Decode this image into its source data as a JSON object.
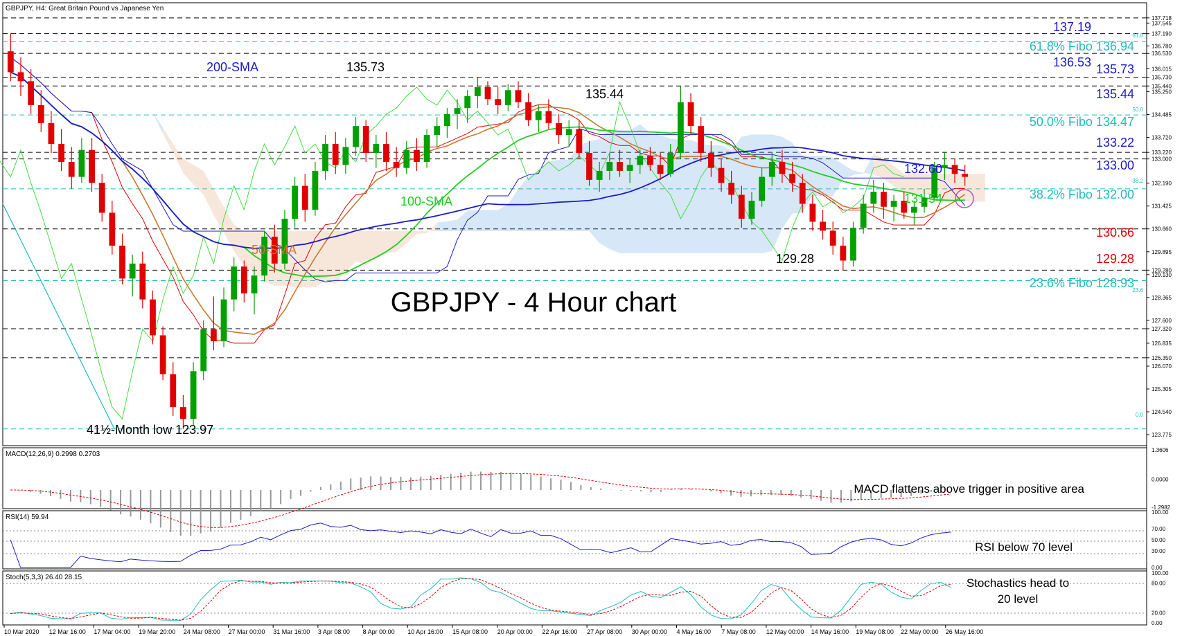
{
  "header": {
    "symbol_info": "GBPJPY, H4: Great Britain Pound vs Japanese Yen"
  },
  "chart_title": "GBPJPY - 4 Hour chart",
  "colors": {
    "candle_up": "#00a000",
    "candle_down": "#e00000",
    "sma200": "#1a1acc",
    "sma100": "#22cc22",
    "sma50": "#c87830",
    "tenkan": "#e00000",
    "kijun": "#1a1acc",
    "chikou": "#44dd44",
    "cloud_bull": "#5aa0e0",
    "cloud_bear": "#e0a070",
    "fibo": "#22bbbb",
    "level": "#000000",
    "annotation_blue": "#1a1acc",
    "annotation_red": "#e00000",
    "annotation_cyan": "#22bbbb",
    "annotation_green": "#22cc22",
    "annotation_orange": "#c87830"
  },
  "chart_data": [
    {
      "type": "candlestick",
      "panel": "price",
      "ylim": [
        123.5,
        137.9
      ],
      "x_tick_labels": [
        "10 Mar 2020",
        "12 Mar 16:00",
        "17 Mar 04:00",
        "19 Mar 20:00",
        "24 Mar 08:00",
        "27 Mar 00:00",
        "31 Mar 16:00",
        "3 Apr 08:00",
        "8 Apr 00:00",
        "10 Apr 16:00",
        "15 Apr 08:00",
        "20 Apr 00:00",
        "22 Apr 16:00",
        "27 Apr 08:00",
        "30 Apr 00:00",
        "4 May 16:00",
        "7 May 08:00",
        "12 May 00:00",
        "14 May 16:00",
        "19 May 08:00",
        "22 May 00:00",
        "26 May 16:00"
      ],
      "y_tick_labels": [
        "137.718",
        "137.545",
        "137.190",
        "136.780",
        "136.530",
        "136.015",
        "135.730",
        "135.440",
        "135.250",
        "134.485",
        "133.720",
        "133.220",
        "133.000",
        "132.190",
        "131.425",
        "130.660",
        "129.895",
        "129.280",
        "129.130",
        "128.365",
        "127.600",
        "127.320",
        "126.835",
        "126.350",
        "126.070",
        "125.305",
        "124.540",
        "123.775"
      ],
      "candles": [
        [
          136.6,
          137.2,
          135.6,
          135.9
        ],
        [
          135.9,
          136.4,
          135.1,
          135.6
        ],
        [
          135.6,
          136.0,
          134.5,
          134.8
        ],
        [
          134.8,
          135.3,
          133.9,
          134.2
        ],
        [
          134.2,
          134.6,
          133.2,
          133.5
        ],
        [
          133.5,
          134.0,
          132.6,
          132.9
        ],
        [
          132.9,
          133.4,
          132.0,
          132.4
        ],
        [
          132.4,
          133.7,
          132.2,
          133.3
        ],
        [
          133.3,
          133.7,
          131.9,
          132.2
        ],
        [
          132.2,
          132.5,
          130.9,
          131.2
        ],
        [
          131.2,
          131.6,
          129.8,
          130.1
        ],
        [
          130.1,
          130.5,
          128.8,
          129.0
        ],
        [
          129.0,
          129.8,
          128.4,
          129.5
        ],
        [
          129.5,
          129.9,
          128.0,
          128.3
        ],
        [
          128.3,
          128.6,
          126.8,
          127.1
        ],
        [
          127.1,
          127.4,
          125.6,
          125.8
        ],
        [
          125.8,
          126.2,
          124.4,
          124.7
        ],
        [
          124.7,
          125.1,
          123.97,
          124.3
        ],
        [
          124.3,
          126.2,
          124.1,
          125.9
        ],
        [
          125.9,
          127.6,
          125.6,
          127.3
        ],
        [
          127.3,
          128.4,
          126.6,
          126.9
        ],
        [
          126.9,
          128.7,
          126.7,
          128.3
        ],
        [
          128.3,
          129.7,
          127.9,
          129.4
        ],
        [
          129.4,
          129.6,
          128.2,
          128.5
        ],
        [
          128.5,
          129.4,
          127.8,
          129.1
        ],
        [
          129.1,
          130.6,
          128.9,
          130.4
        ],
        [
          130.4,
          130.8,
          129.2,
          129.5
        ],
        [
          129.5,
          131.3,
          129.3,
          131.0
        ],
        [
          131.0,
          132.4,
          130.7,
          132.1
        ],
        [
          132.1,
          132.5,
          130.9,
          131.3
        ],
        [
          131.3,
          132.9,
          131.1,
          132.6
        ],
        [
          132.6,
          133.8,
          132.3,
          133.5
        ],
        [
          133.5,
          133.9,
          132.5,
          132.8
        ],
        [
          132.8,
          133.7,
          132.5,
          133.4
        ],
        [
          133.4,
          134.4,
          133.1,
          134.1
        ],
        [
          134.1,
          134.3,
          132.9,
          133.2
        ],
        [
          133.2,
          133.8,
          132.7,
          133.5
        ],
        [
          133.5,
          133.9,
          132.6,
          132.9
        ],
        [
          132.9,
          133.4,
          132.4,
          132.7
        ],
        [
          132.7,
          133.6,
          132.5,
          133.3
        ],
        [
          133.3,
          133.7,
          132.6,
          132.9
        ],
        [
          132.9,
          134.0,
          132.7,
          133.8
        ],
        [
          133.8,
          134.4,
          133.4,
          134.1
        ],
        [
          134.1,
          134.7,
          133.7,
          134.5
        ],
        [
          134.5,
          135.0,
          134.0,
          134.7
        ],
        [
          134.7,
          135.3,
          134.2,
          135.1
        ],
        [
          135.1,
          135.73,
          134.7,
          135.4
        ],
        [
          135.4,
          135.6,
          134.8,
          135.0
        ],
        [
          135.0,
          135.4,
          134.5,
          134.8
        ],
        [
          134.8,
          135.5,
          134.6,
          135.3
        ],
        [
          135.3,
          135.6,
          134.7,
          134.9
        ],
        [
          134.9,
          135.2,
          134.1,
          134.3
        ],
        [
          134.3,
          134.8,
          133.9,
          134.6
        ],
        [
          134.6,
          135.0,
          134.0,
          134.2
        ],
        [
          134.2,
          134.5,
          133.5,
          133.8
        ],
        [
          133.8,
          134.3,
          133.4,
          134.0
        ],
        [
          134.0,
          134.3,
          133.0,
          133.2
        ],
        [
          133.2,
          133.6,
          132.1,
          132.3
        ],
        [
          132.3,
          132.9,
          131.9,
          132.6
        ],
        [
          132.6,
          133.2,
          132.3,
          132.9
        ],
        [
          132.9,
          133.3,
          132.4,
          132.6
        ],
        [
          132.6,
          133.0,
          132.2,
          132.8
        ],
        [
          132.8,
          133.3,
          132.5,
          133.1
        ],
        [
          133.1,
          133.4,
          132.6,
          132.8
        ],
        [
          132.8,
          133.2,
          132.3,
          132.5
        ],
        [
          132.5,
          133.5,
          132.4,
          133.2
        ],
        [
          133.2,
          135.44,
          133.0,
          134.9
        ],
        [
          134.9,
          135.2,
          133.8,
          134.1
        ],
        [
          134.1,
          134.4,
          132.9,
          133.2
        ],
        [
          133.2,
          133.6,
          132.4,
          132.7
        ],
        [
          132.7,
          133.0,
          131.9,
          132.2
        ],
        [
          132.2,
          132.6,
          131.5,
          131.8
        ],
        [
          131.8,
          132.1,
          130.7,
          131.0
        ],
        [
          131.0,
          131.9,
          130.8,
          131.6
        ],
        [
          131.6,
          132.7,
          131.4,
          132.4
        ],
        [
          132.4,
          133.2,
          132.1,
          132.9
        ],
        [
          132.9,
          133.3,
          132.2,
          132.5
        ],
        [
          132.5,
          132.9,
          131.9,
          132.2
        ],
        [
          132.2,
          132.5,
          131.2,
          131.5
        ],
        [
          131.5,
          131.8,
          130.6,
          130.9
        ],
        [
          130.9,
          131.3,
          130.3,
          130.6
        ],
        [
          130.6,
          130.9,
          129.8,
          130.1
        ],
        [
          130.1,
          130.4,
          129.28,
          129.6
        ],
        [
          129.6,
          130.9,
          129.4,
          130.7
        ],
        [
          130.7,
          131.8,
          130.5,
          131.5
        ],
        [
          131.5,
          132.3,
          131.2,
          131.9
        ],
        [
          131.9,
          132.2,
          131.0,
          131.4
        ],
        [
          131.4,
          131.8,
          130.9,
          131.6
        ],
        [
          131.6,
          131.9,
          131.0,
          131.2
        ],
        [
          131.2,
          131.6,
          130.8,
          131.4
        ],
        [
          131.4,
          132.0,
          131.2,
          131.7
        ],
        [
          131.7,
          132.9,
          131.6,
          132.7
        ],
        [
          132.7,
          133.22,
          132.3,
          132.8
        ],
        [
          132.8,
          133.0,
          132.2,
          132.5
        ],
        [
          132.5,
          132.8,
          132.1,
          132.4
        ]
      ]
    },
    {
      "type": "line",
      "panel": "macd",
      "title": "MACD(12,26,9) 0.2998 0.2703",
      "y_tick_labels": [
        "1.3606",
        "0.0000",
        "-1.2982"
      ]
    },
    {
      "type": "line",
      "panel": "rsi",
      "title": "RSI(14) 59.94",
      "y_tick_labels": [
        "100.00",
        "70.00",
        "50.00",
        "30.00",
        "0.00"
      ]
    },
    {
      "type": "line",
      "panel": "stochastic",
      "title": "Stoch(5,3,3) 26.40 28.15",
      "y_tick_labels": [
        "100.00",
        "80.00",
        "20.00",
        "0.00"
      ]
    }
  ],
  "annotations": {
    "label_137_19": "137.19",
    "fibo_61": "61.8% Fibo 136.94",
    "label_136_53": "136.53",
    "label_135_73": "135.73",
    "label_135_44": "135.44",
    "fibo_50": "50.0% Fibo 134.47",
    "label_133_22": "133.22",
    "label_133_00": "133.00",
    "label_132_60": "132.60",
    "label_131_54": "131.54",
    "fibo_38": "38.2% Fibo 132.00",
    "label_130_66": "130.66",
    "label_129_28": "129.28",
    "fibo_23": "23.6% Fibo 128.93",
    "sma200_label": "200-SMA",
    "sma100_label": "100-SMA",
    "sma50_label": "50-SMA",
    "peak_135_73": "135.73",
    "peak_135_44": "135.44",
    "trough_129_28": "129.28",
    "low_label": "41½-Month low 123.97",
    "fib_small_61": "61.8",
    "fib_small_50": "50.0",
    "fib_small_38": "38.2",
    "fib_small_23": "23.6",
    "fib_small_0": "0.0",
    "macd_note": "MACD flattens above trigger in positive area",
    "rsi_note": "RSI below 70 level",
    "stoch_note_1": "Stochastics head to",
    "stoch_note_2": "20 level"
  }
}
